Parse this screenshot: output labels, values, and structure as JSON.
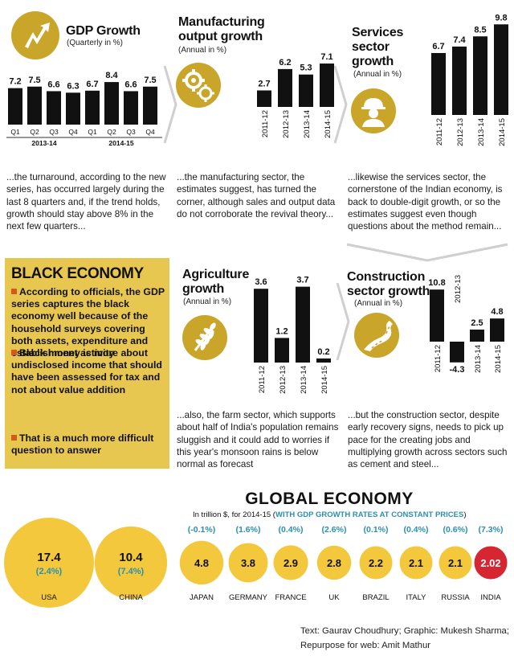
{
  "panels": {
    "gdp": {
      "title": "GDP Growth",
      "subtitle": "(Quarterly in %)",
      "caption": "...the turnaround, according to the new series, has occurred largely during the last 8 quarters and, if the trend holds, growth should stay above 8% in the next few quarters..."
    },
    "manufacturing": {
      "title_line1": "Manufacturing",
      "title_line2": "output growth",
      "subtitle": "(Annual in %)",
      "caption": "...the manufacturing sector, the estimates suggest, has turned the corner, although sales and output data do not corroborate the revival theory..."
    },
    "services": {
      "title_line1": "Services",
      "title_line2": "sector",
      "title_line3": "growth",
      "subtitle": "(Annual in %)",
      "caption": "...likewise the services sector, the cornerstone of the Indian economy, is back to double-digit growth, or so the estimates suggest even though questions about the method remain..."
    },
    "agriculture": {
      "title_line1": "Agriculture",
      "title_line2": "growth",
      "subtitle": "(Annual in %)",
      "caption": "...also, the farm sector, which supports about half of India's population remains sluggish and it could add to worries if this year's monsoon rains is below normal as forecast"
    },
    "construction": {
      "title_line1": "Construction",
      "title_line2": "sector growth",
      "subtitle": "(Annual in %)",
      "caption": "...but the construction sector, despite early recovery signs, needs to pick up pace for the creating jobs and multiplying growth across sectors such as cement and steel..."
    }
  },
  "black_economy": {
    "title": "BLACK ECONOMY",
    "bullets": [
      "According to officials, the GDP series captures the black economy well because of the household surveys covering both assets, expenditure and establishment activity",
      "Black money is more about undisclosed income that should have been assessed for tax and not about value addition",
      "That is a much more difficult question to answer"
    ]
  },
  "global": {
    "title": "GLOBAL ECONOMY",
    "subtitle_plain": "In trillion $, for 2014-15 (",
    "subtitle_highlight": "WITH GDP GROWTH RATES AT CONSTANT PRICES",
    "subtitle_end": ")"
  },
  "credits": {
    "line1": "Text: Gaurav Choudhury; Graphic: Mukesh Sharma;",
    "line2": "Repurpose for web: Amit Mathur"
  },
  "colors": {
    "bar": "#111111",
    "gold": "#f3c83c",
    "icon_gold": "#c9a52a",
    "box_gold": "#e7c750",
    "teal": "#2c8fb0",
    "india_red": "#d62631",
    "bullet_orange": "#d55a1a"
  },
  "icons": {
    "gdp": "lightning-arrow-icon",
    "manufacturing": "gears-icon",
    "services": "worker-icon",
    "agriculture": "wheat-icon",
    "construction": "road-icon"
  },
  "chart_data": [
    {
      "id": "gdp",
      "type": "bar",
      "categories": [
        "Q1",
        "Q2",
        "Q3",
        "Q4",
        "Q1",
        "Q2",
        "Q3",
        "Q4"
      ],
      "groups": [
        {
          "label": "2013-14",
          "from": 0,
          "to": 3
        },
        {
          "label": "2014-15",
          "from": 4,
          "to": 7
        }
      ],
      "values": [
        7.2,
        7.5,
        6.6,
        6.3,
        6.7,
        8.4,
        6.6,
        7.5
      ],
      "labels": [
        "7.2",
        "7.5",
        "6.6",
        "6.3",
        "6.7",
        "8.4",
        "6.6",
        "7.5"
      ],
      "title": "GDP Growth",
      "ylabel": "(Quarterly in %)"
    },
    {
      "id": "manufacturing",
      "type": "bar",
      "categories": [
        "2011-12",
        "2012-13",
        "2013-14",
        "2014-15"
      ],
      "values": [
        2.7,
        6.2,
        5.3,
        7.1
      ],
      "labels": [
        "2.7",
        "6.2",
        "5.3",
        "7.1"
      ],
      "title": "Manufacturing output growth",
      "ylabel": "(Annual in %)"
    },
    {
      "id": "services",
      "type": "bar",
      "categories": [
        "2011-12",
        "2012-13",
        "2013-14",
        "2014-15"
      ],
      "values": [
        6.7,
        7.4,
        8.5,
        9.8
      ],
      "labels": [
        "6.7",
        "7.4",
        "8.5",
        "9.8"
      ],
      "title": "Services sector growth",
      "ylabel": "(Annual in %)"
    },
    {
      "id": "agriculture",
      "type": "bar",
      "categories": [
        "2011-12",
        "2012-13",
        "2013-14",
        "2014-15"
      ],
      "values": [
        3.6,
        1.2,
        3.7,
        0.2
      ],
      "labels": [
        "3.6",
        "1.2",
        "3.7",
        "0.2"
      ],
      "title": "Agriculture growth",
      "ylabel": "(Annual in %)"
    },
    {
      "id": "construction",
      "type": "bar",
      "categories": [
        "2011-12",
        "2012-13",
        "2013-14",
        "2014-15"
      ],
      "values": [
        10.8,
        -4.3,
        2.5,
        4.8
      ],
      "labels": [
        "10.8",
        "-4.3",
        "2.5",
        "4.8"
      ],
      "title": "Construction sector growth",
      "ylabel": "(Annual in %)"
    },
    {
      "id": "global",
      "type": "bubble",
      "title": "GLOBAL ECONOMY",
      "subtitle": "In trillion $, for 2014-15 (WITH GDP GROWTH RATES AT CONSTANT PRICES)",
      "countries": [
        {
          "name": "USA",
          "gdp": 17.4,
          "gdp_label": "17.4",
          "growth": "(2.4%)"
        },
        {
          "name": "CHINA",
          "gdp": 10.4,
          "gdp_label": "10.4",
          "growth": "(7.4%)"
        },
        {
          "name": "JAPAN",
          "gdp": 4.8,
          "gdp_label": "4.8",
          "growth": "(-0.1%)"
        },
        {
          "name": "GERMANY",
          "gdp": 3.8,
          "gdp_label": "3.8",
          "growth": "(1.6%)"
        },
        {
          "name": "FRANCE",
          "gdp": 2.9,
          "gdp_label": "2.9",
          "growth": "(0.4%)"
        },
        {
          "name": "UK",
          "gdp": 2.8,
          "gdp_label": "2.8",
          "growth": "(2.6%)"
        },
        {
          "name": "BRAZIL",
          "gdp": 2.2,
          "gdp_label": "2.2",
          "growth": "(0.1%)"
        },
        {
          "name": "ITALY",
          "gdp": 2.1,
          "gdp_label": "2.1",
          "growth": "(0.4%)"
        },
        {
          "name": "RUSSIA",
          "gdp": 2.1,
          "gdp_label": "2.1",
          "growth": "(0.6%)"
        },
        {
          "name": "INDIA",
          "gdp": 2.02,
          "gdp_label": "2.02",
          "growth": "(7.3%)",
          "highlight": true
        }
      ]
    }
  ]
}
